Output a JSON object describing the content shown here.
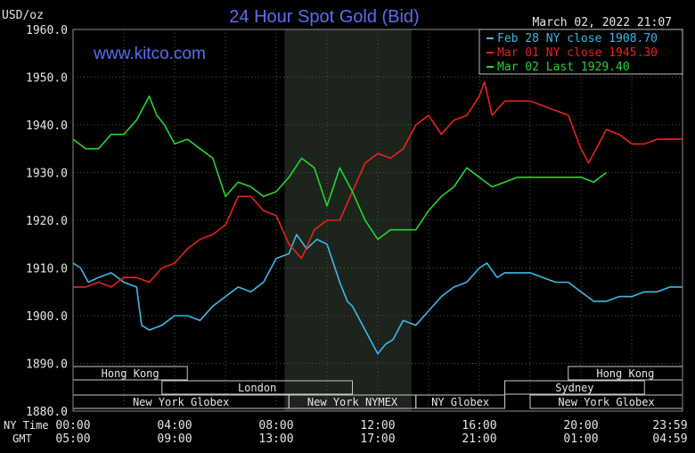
{
  "chart_data": {
    "type": "line",
    "title": "24 Hour Spot Gold (Bid)",
    "unit_label": "USD/oz",
    "watermark": "www.kitco.com",
    "datetime": "March 02, 2022 21:07",
    "ylim": [
      1880,
      1960
    ],
    "y_ticks": [
      "1960.0",
      "1950.0",
      "1940.0",
      "1930.0",
      "1920.0",
      "1910.0",
      "1900.0",
      "1890.0",
      "1880.0"
    ],
    "x_row_labels": {
      "ny": "NY Time",
      "gmt": "GMT"
    },
    "x_ticks_ny": [
      "00:00",
      "04:00",
      "08:00",
      "12:00",
      "16:00",
      "20:00",
      "23:59"
    ],
    "x_ticks_gmt": [
      "05:00",
      "09:00",
      "13:00",
      "17:00",
      "21:00",
      "01:00",
      "04:59"
    ],
    "shaded_hours": [
      8.33,
      13.33
    ],
    "sessions": [
      {
        "label": "Hong Kong",
        "row": 0,
        "start": 0,
        "end": 4.5
      },
      {
        "label": "Hong Kong",
        "row": 0,
        "start": 19.5,
        "end": 24
      },
      {
        "label": "London",
        "row": 1,
        "start": 3.5,
        "end": 11
      },
      {
        "label": "Sydney",
        "row": 1,
        "start": 17,
        "end": 22.5
      },
      {
        "label": "New York Globex",
        "row": 2,
        "start": 0,
        "end": 8.5
      },
      {
        "label": "New York NYMEX",
        "row": 2,
        "start": 8.5,
        "end": 13.5
      },
      {
        "label": "NY Globex",
        "row": 2,
        "start": 13.5,
        "end": 17
      },
      {
        "label": "New York Globex",
        "row": 2,
        "start": 18,
        "end": 24
      }
    ],
    "series": [
      {
        "name": "Feb 28 NY close 1908.70",
        "color": "#3fb8e6",
        "x": [
          0,
          0.3,
          0.6,
          1,
          1.5,
          2,
          2.5,
          2.7,
          3,
          3.5,
          4,
          4.5,
          5,
          5.5,
          6,
          6.5,
          7,
          7.5,
          8,
          8.5,
          8.8,
          9.2,
          9.6,
          10,
          10.5,
          10.8,
          11,
          11.5,
          12,
          12.3,
          12.6,
          13,
          13.5,
          14,
          14.5,
          15,
          15.5,
          16,
          16.3,
          16.7,
          17,
          17.5,
          18,
          18.5,
          19,
          19.5,
          20,
          20.5,
          21,
          21.5,
          22,
          22.5,
          23,
          23.5,
          24
        ],
        "values": [
          1911,
          1910,
          1907,
          1908,
          1909,
          1907,
          1906,
          1898,
          1897,
          1898,
          1900,
          1900,
          1899,
          1902,
          1904,
          1906,
          1905,
          1907,
          1912,
          1913,
          1917,
          1914,
          1916,
          1915,
          1907,
          1903,
          1902,
          1897,
          1892,
          1894,
          1895,
          1899,
          1898,
          1901,
          1904,
          1906,
          1907,
          1910,
          1911,
          1908,
          1909,
          1909,
          1909,
          1908,
          1907,
          1907,
          1905,
          1903,
          1903,
          1904,
          1904,
          1905,
          1905,
          1906,
          1906
        ]
      },
      {
        "name": "Mar 01 NY close 1945.30",
        "color": "#e8221e",
        "x": [
          0,
          0.5,
          1,
          1.5,
          2,
          2.5,
          3,
          3.5,
          4,
          4.5,
          5,
          5.5,
          6,
          6.5,
          7,
          7.5,
          8,
          8.5,
          9,
          9.5,
          10,
          10.5,
          11,
          11.5,
          12,
          12.5,
          13,
          13.5,
          14,
          14.5,
          15,
          15.5,
          16,
          16.2,
          16.5,
          17,
          17.5,
          18,
          18.5,
          19,
          19.5,
          20,
          20.3,
          20.5,
          21,
          21.5,
          22,
          22.5,
          23,
          23.5,
          24
        ],
        "values": [
          1906,
          1906,
          1907,
          1906,
          1908,
          1908,
          1907,
          1910,
          1911,
          1914,
          1916,
          1917,
          1919,
          1925,
          1925,
          1922,
          1921,
          1915,
          1912,
          1918,
          1920,
          1920,
          1926,
          1932,
          1934,
          1933,
          1935,
          1940,
          1942,
          1938,
          1941,
          1942,
          1946,
          1949,
          1942,
          1945,
          1945,
          1945,
          1944,
          1943,
          1942,
          1935,
          1932,
          1934,
          1939,
          1938,
          1936,
          1936,
          1937,
          1937,
          1937
        ]
      },
      {
        "name": "Mar 02 Last 1929.40",
        "color": "#26d434",
        "x": [
          0,
          0.5,
          1,
          1.5,
          2,
          2.5,
          2.8,
          3,
          3.3,
          3.6,
          4,
          4.5,
          5,
          5.5,
          6,
          6.5,
          7,
          7.5,
          8,
          8.5,
          9,
          9.5,
          10,
          10.5,
          11,
          11.5,
          12,
          12.5,
          13,
          13.5,
          14,
          14.5,
          15,
          15.5,
          16,
          16.5,
          17,
          17.5,
          18,
          18.5,
          19,
          19.5,
          20,
          20.5,
          21
        ],
        "values": [
          1937,
          1935,
          1935,
          1938,
          1938,
          1941,
          1944,
          1946,
          1942,
          1940,
          1936,
          1937,
          1935,
          1933,
          1925,
          1928,
          1927,
          1925,
          1926,
          1929,
          1933,
          1931,
          1923,
          1931,
          1926,
          1920,
          1916,
          1918,
          1918,
          1918,
          1922,
          1925,
          1927,
          1931,
          1929,
          1927,
          1928,
          1929,
          1929,
          1929,
          1929,
          1929,
          1929,
          1928,
          1930
        ]
      }
    ]
  }
}
